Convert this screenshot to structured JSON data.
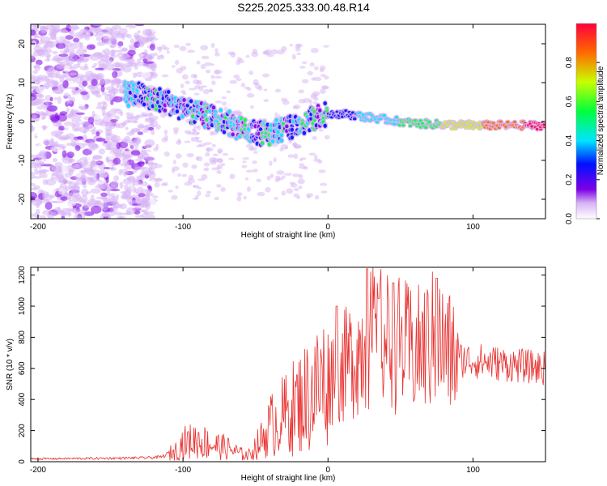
{
  "title": "S225.2025.333.00.48.R14",
  "colors": {
    "snr_line": "#e8302e",
    "spec_bg": "#ffffff",
    "frame": "#000000"
  },
  "chart_data": [
    {
      "type": "heatmap",
      "name": "spectrogram",
      "xlabel": "Height of straight line (km)",
      "ylabel": "Frequency (Hz)",
      "xlim": [
        -205,
        150
      ],
      "ylim": [
        -25,
        25
      ],
      "xticks": [
        -200,
        -100,
        0,
        100
      ],
      "yticks": [
        -20,
        -10,
        0,
        10,
        20
      ],
      "ridge": {
        "x": [
          -140,
          -130,
          -120,
          -110,
          -100,
          -90,
          -80,
          -70,
          -60,
          -50,
          -40,
          -30,
          -20,
          -10,
          0,
          10,
          20,
          30,
          40,
          50,
          60,
          80,
          100,
          120,
          150
        ],
        "y": [
          7,
          7,
          6,
          5,
          3,
          2,
          1,
          0,
          -2,
          -3,
          -3,
          -2,
          -1,
          1,
          2,
          2,
          1.5,
          1,
          0.5,
          0,
          -0.5,
          -0.8,
          -1,
          -1,
          -1
        ]
      },
      "colorbar": {
        "label": "Normalized spectral amplitude",
        "range": [
          0,
          1
        ],
        "ticks": [
          "0.0",
          "0.2",
          "0.4",
          "0.6",
          "0.8"
        ],
        "colormap": [
          "#ffffff",
          "#d7b4f5",
          "#7d00e6",
          "#0010ff",
          "#00e5ff",
          "#00ff3c",
          "#c8ff00",
          "#ff6a00",
          "#ff003c"
        ]
      }
    },
    {
      "type": "line",
      "name": "snr",
      "xlabel": "Height of straight line (km)",
      "ylabel": "SNR (10 * v/v)",
      "xlim": [
        -205,
        150
      ],
      "ylim": [
        0,
        1250
      ],
      "xticks": [
        -200,
        -100,
        0,
        100
      ],
      "yticks": [
        0,
        200,
        400,
        600,
        800,
        1000,
        1200
      ],
      "series": [
        {
          "x": [
            -205,
            -180,
            -150,
            -125,
            -115,
            -105,
            -100,
            -90,
            -80,
            -70,
            -60,
            -55,
            -45,
            -40,
            -30,
            -20,
            -10,
            0,
            10,
            20,
            25,
            30,
            40,
            50,
            60,
            70,
            75,
            80,
            90,
            100,
            110,
            120,
            130,
            140,
            150
          ],
          "y": [
            18,
            20,
            22,
            25,
            30,
            70,
            120,
            140,
            110,
            90,
            50,
            40,
            150,
            230,
            300,
            380,
            450,
            550,
            600,
            700,
            750,
            800,
            780,
            750,
            700,
            760,
            800,
            720,
            660,
            650,
            640,
            630,
            620,
            610,
            600
          ]
        }
      ],
      "peaks": [
        {
          "x": 27,
          "y": 1240
        },
        {
          "x": 75,
          "y": 1180
        },
        {
          "x": 45,
          "y": 1150
        },
        {
          "x": 35,
          "y": 1050
        },
        {
          "x": 6,
          "y": 1000
        }
      ]
    }
  ]
}
